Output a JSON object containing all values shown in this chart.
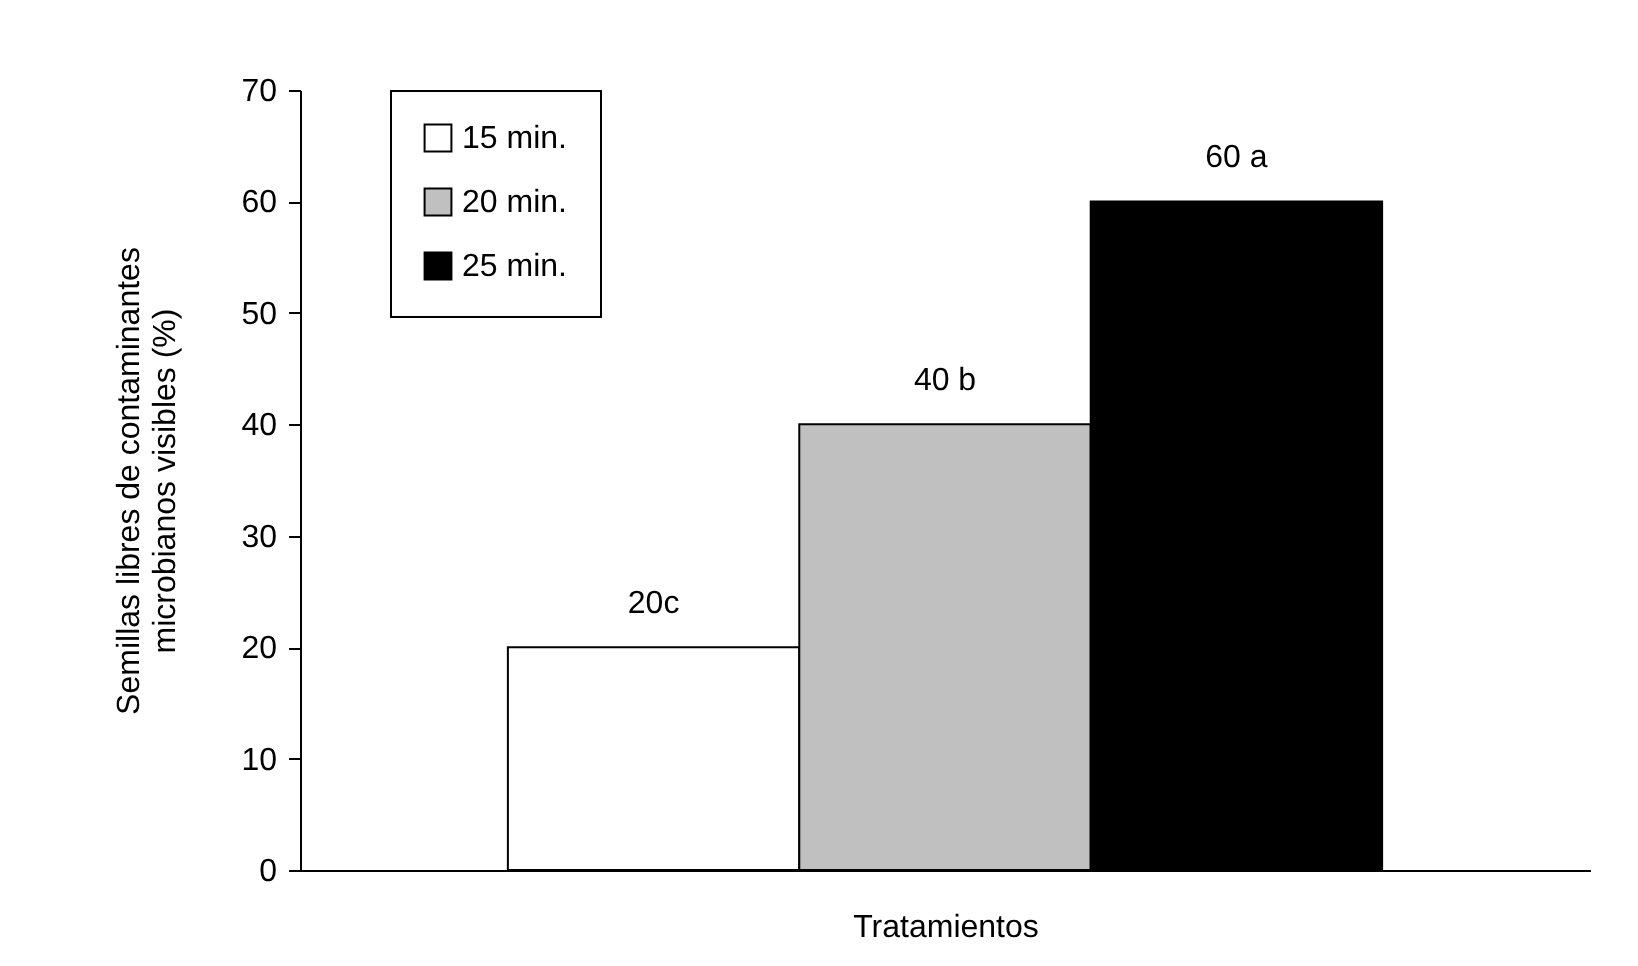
{
  "chart_data": {
    "type": "bar",
    "xlabel": "Tratamientos",
    "ylabel": "Semillas libres de contaminantes\nmicrobianos visibles (%)",
    "categories": [
      null
    ],
    "series": [
      {
        "name": "15 min.",
        "color": "#ffffff",
        "values": [
          20
        ],
        "value_labels": [
          "20c"
        ]
      },
      {
        "name": "20 min.",
        "color": "#c0c0c0",
        "values": [
          40
        ],
        "value_labels": [
          "40 b"
        ]
      },
      {
        "name": "25 min.",
        "color": "#000000",
        "values": [
          60
        ],
        "value_labels": [
          "60 a"
        ]
      }
    ],
    "ylim": [
      0,
      70
    ],
    "yticks": [
      0,
      10,
      20,
      30,
      40,
      50,
      60,
      70
    ],
    "grid": false,
    "legend": "top left"
  }
}
